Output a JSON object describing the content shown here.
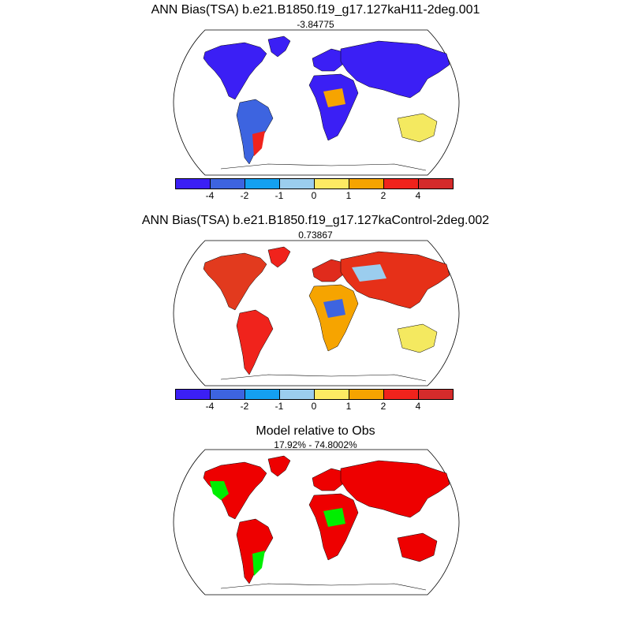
{
  "panels": [
    {
      "title": "ANN Bias(TSA) b.e21.B1850.f19_g17.127kaH11-2deg.001",
      "subtitle": "-3.84775",
      "colors": {
        "NorthAmerica": "#3b1ff5",
        "SouthAmerica": "#3d64e0",
        "Europe": "#3b1ff5",
        "Asia": "#3b1ff5",
        "Africa": "#3b1ff5",
        "Australia": "#f4e960",
        "Greenland": "#3b1ff5"
      },
      "accent_patches": [
        {
          "region": "SouthAmerica",
          "color": "#f0231c"
        },
        {
          "region": "Africa",
          "color": "#f6a400"
        }
      ]
    },
    {
      "title": "ANN Bias(TSA) b.e21.B1850.f19_g17.127kaControl-2deg.002",
      "subtitle": "0.73867",
      "colors": {
        "NorthAmerica": "#e23a1e",
        "SouthAmerica": "#f0231c",
        "Europe": "#e02b1c",
        "Asia": "#e63018",
        "Africa": "#f6a400",
        "Australia": "#f4e960",
        "Greenland": "#f0231c"
      },
      "accent_patches": [
        {
          "region": "Africa",
          "color": "#3d64e0"
        },
        {
          "region": "Asia",
          "color": "#9bcdee"
        }
      ]
    },
    {
      "title": "Model relative to Obs",
      "subtitle": "17.92% - 74.8002%",
      "colors": {
        "NorthAmerica": "#ee0000",
        "SouthAmerica": "#ee0000",
        "Europe": "#ee0000",
        "Asia": "#ee0000",
        "Africa": "#ee0000",
        "Australia": "#ee0000",
        "Greenland": "#ee0000"
      },
      "accent_patches": [
        {
          "region": "NorthAmerica",
          "color": "#00ee00"
        },
        {
          "region": "SouthAmerica",
          "color": "#00ee00"
        },
        {
          "region": "Africa",
          "color": "#00ee00"
        }
      ]
    }
  ],
  "colorbar": {
    "colors": [
      "#3b1ff5",
      "#3d64e0",
      "#14a0f0",
      "#9bcdee",
      "#fdea63",
      "#f6a400",
      "#f0231c",
      "#d42b2b"
    ],
    "labels": [
      "-4",
      "-2",
      "-1",
      "0",
      "1",
      "2",
      "4"
    ]
  }
}
